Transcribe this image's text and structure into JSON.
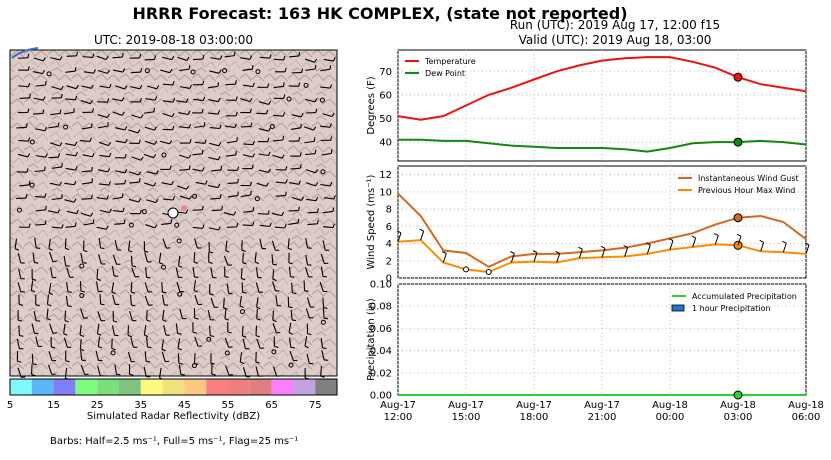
{
  "header": {
    "title": "HRRR Forecast: 163 HK COMPLEX, (state not reported)",
    "run": "Run (UTC): 2019 Aug 17, 12:00 f15",
    "valid": "Valid (UTC): 2019 Aug 18, 03:00"
  },
  "map": {
    "title": "UTC: 2019-08-18 03:00:00",
    "colorbar_label": "Simulated Radar Reflectivity (dBZ)",
    "colorbar_ticks": [
      "5",
      "15",
      "25",
      "35",
      "45",
      "55",
      "65",
      "75"
    ],
    "colorbar_colors": [
      "#7ff9fb",
      "#5bb6f7",
      "#7f7ff9",
      "#7ffb7f",
      "#7be07b",
      "#7fc47f",
      "#fbfb7f",
      "#f2e27f",
      "#fbc87f",
      "#fb7f7f",
      "#ee7f7f",
      "#dd7f7f",
      "#fb7ffb",
      "#c4a2e0",
      "#7f7f7f"
    ],
    "barbs_note": "Barbs: Half=2.5 ms⁻¹, Full=5 ms⁻¹, Flag=25 ms⁻¹"
  },
  "chart_data": [
    {
      "type": "line",
      "x": [
        "2019-08-17 12:00",
        "2019-08-17 13:00",
        "2019-08-17 14:00",
        "2019-08-17 15:00",
        "2019-08-17 16:00",
        "2019-08-17 17:00",
        "2019-08-17 18:00",
        "2019-08-17 19:00",
        "2019-08-17 20:00",
        "2019-08-17 21:00",
        "2019-08-17 22:00",
        "2019-08-17 23:00",
        "2019-08-18 00:00",
        "2019-08-18 01:00",
        "2019-08-18 02:00",
        "2019-08-18 03:00",
        "2019-08-18 04:00",
        "2019-08-18 05:00",
        "2019-08-18 06:00"
      ],
      "ylabel": "Degrees (F)",
      "ylim": [
        32,
        79
      ],
      "yticks": [
        40,
        50,
        60,
        70
      ],
      "grid": true,
      "legend": "top-left",
      "highlight_x": "2019-08-18 03:00",
      "series": [
        {
          "name": "Temperature",
          "color": "#ee1111",
          "values": [
            51,
            49.5,
            51,
            55.5,
            60,
            63,
            66.5,
            70,
            72.5,
            74.5,
            75.5,
            76,
            76,
            74,
            71.5,
            67.5,
            64.5,
            63,
            61.5
          ]
        },
        {
          "name": "Dew Point",
          "color": "#118811",
          "values": [
            41,
            41,
            40.5,
            40.5,
            39.5,
            38.5,
            38,
            37.5,
            37.5,
            37.5,
            37,
            36,
            37.5,
            39.5,
            40,
            40,
            40.5,
            40,
            39
          ]
        }
      ]
    },
    {
      "type": "line",
      "x": [
        "2019-08-17 12:00",
        "2019-08-17 13:00",
        "2019-08-17 14:00",
        "2019-08-17 15:00",
        "2019-08-17 16:00",
        "2019-08-17 17:00",
        "2019-08-17 18:00",
        "2019-08-17 19:00",
        "2019-08-17 20:00",
        "2019-08-17 21:00",
        "2019-08-17 22:00",
        "2019-08-17 23:00",
        "2019-08-18 00:00",
        "2019-08-18 01:00",
        "2019-08-18 02:00",
        "2019-08-18 03:00",
        "2019-08-18 04:00",
        "2019-08-18 05:00",
        "2019-08-18 06:00"
      ],
      "ylabel": "Wind Speed (ms⁻¹)",
      "ylim": [
        0,
        13
      ],
      "yticks": [
        0,
        2,
        4,
        6,
        8,
        10,
        12
      ],
      "grid": true,
      "legend": "top-right",
      "highlight_x": "2019-08-18 03:00",
      "series": [
        {
          "name": "Instantaneous Wind Gust",
          "color": "#d2691e",
          "values": [
            9.8,
            7.2,
            3.2,
            2.9,
            1.3,
            2.5,
            2.8,
            2.8,
            3.0,
            3.2,
            3.5,
            4.0,
            4.6,
            5.2,
            6.2,
            7.0,
            7.2,
            6.5,
            4.5
          ]
        },
        {
          "name": "Previous Hour Max Wind",
          "color": "#ff8c00",
          "values": [
            4.2,
            4.4,
            1.8,
            1.0,
            0.7,
            1.8,
            1.9,
            1.8,
            2.3,
            2.4,
            2.5,
            2.8,
            3.3,
            3.6,
            3.9,
            3.8,
            3.1,
            3.0,
            2.8
          ]
        }
      ]
    },
    {
      "type": "line",
      "x": [
        "Aug-17\n12:00",
        "Aug-17\n15:00",
        "Aug-17\n18:00",
        "Aug-17\n21:00",
        "Aug-18\n00:00",
        "Aug-18\n03:00",
        "Aug-18\n06:00"
      ],
      "xtick_top": [
        "Aug-17",
        "Aug-17",
        "Aug-17",
        "Aug-17",
        "Aug-18",
        "Aug-18",
        "Aug-18"
      ],
      "xtick_bottom": [
        "12:00",
        "15:00",
        "18:00",
        "21:00",
        "00:00",
        "03:00",
        "06:00"
      ],
      "ylabel": "Precipitation (in)",
      "ylim": [
        0,
        0.1
      ],
      "yticks": [
        "0.00",
        "0.02",
        "0.04",
        "0.06",
        "0.08",
        "0.10"
      ],
      "grid": true,
      "legend": "top-right",
      "highlight_x": "2019-08-18 03:00",
      "series": [
        {
          "name": "Accumulated Precipitation",
          "color": "#33cc33",
          "values": [
            0,
            0,
            0,
            0,
            0,
            0,
            0
          ]
        },
        {
          "name": "1 hour Precipitation",
          "color": "#1f77d0",
          "values": [
            0,
            0,
            0,
            0,
            0,
            0,
            0
          ]
        }
      ]
    }
  ]
}
